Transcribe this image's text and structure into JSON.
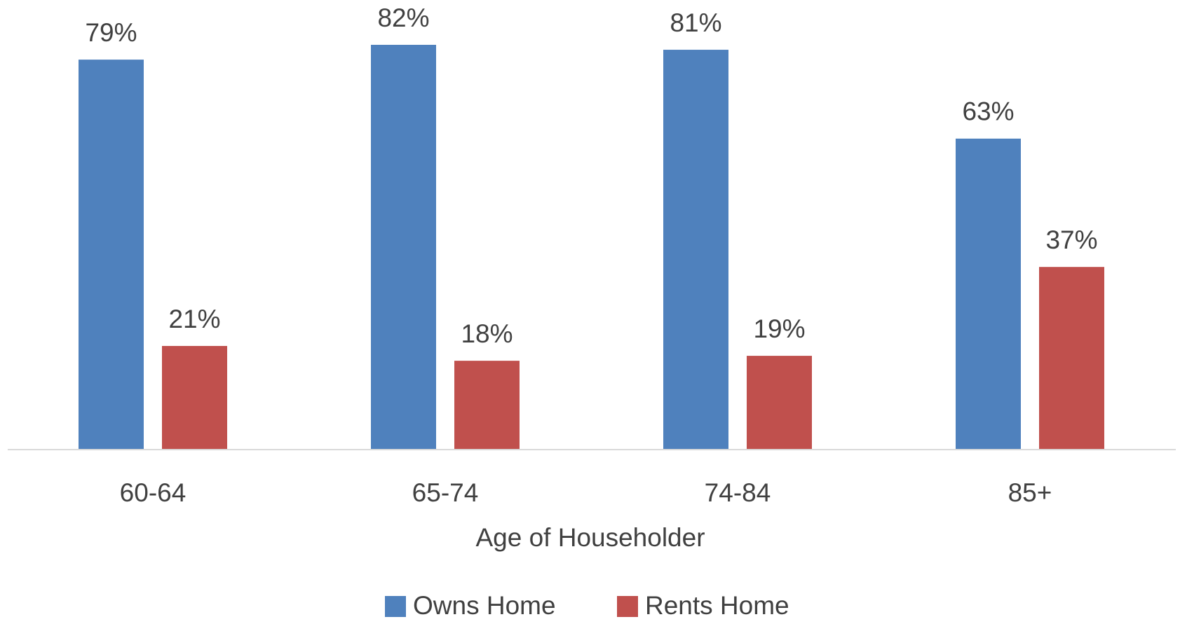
{
  "chart_data": {
    "type": "bar",
    "x_label": "Age of Householder",
    "categories": [
      "60-64",
      "65-74",
      "74-84",
      "85+"
    ],
    "series": [
      {
        "name": "Owns Home",
        "color": "#4f81bd",
        "values": [
          79,
          82,
          81,
          63
        ],
        "value_labels": [
          "79%",
          "82%",
          "81%",
          "63%"
        ]
      },
      {
        "name": "Rents Home",
        "color": "#c0504d",
        "values": [
          21,
          18,
          19,
          37
        ],
        "value_labels": [
          "21%",
          "18%",
          "19%",
          "37%"
        ]
      }
    ],
    "legend": "bottom"
  }
}
